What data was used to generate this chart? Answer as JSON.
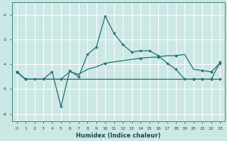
{
  "xlabel": "Humidex (Indice chaleur)",
  "xlim": [
    -0.5,
    23.5
  ],
  "ylim": [
    -6.3,
    -1.5
  ],
  "bg_color": "#cce8e5",
  "grid_color": "#ffffff",
  "line_color": "#1a7070",
  "yticks": [
    -6,
    -5,
    -4,
    -3,
    -2
  ],
  "xticks": [
    0,
    1,
    2,
    3,
    4,
    5,
    6,
    7,
    8,
    9,
    10,
    11,
    12,
    13,
    14,
    15,
    16,
    17,
    18,
    19,
    20,
    21,
    22,
    23
  ],
  "line1_x": [
    0,
    1,
    2,
    3,
    4,
    5,
    6,
    7,
    8,
    9,
    10,
    11,
    12,
    13,
    14,
    15,
    16,
    17,
    18,
    19,
    20,
    21,
    22,
    23
  ],
  "line1_y": [
    -4.3,
    -4.6,
    -4.6,
    -4.6,
    -4.6,
    -4.6,
    -4.6,
    -4.6,
    -4.6,
    -4.6,
    -4.6,
    -4.6,
    -4.6,
    -4.6,
    -4.6,
    -4.6,
    -4.6,
    -4.6,
    -4.6,
    -4.6,
    -4.6,
    -4.6,
    -4.6,
    -4.6
  ],
  "line2_x": [
    0,
    1,
    2,
    3,
    4,
    5,
    6,
    7,
    8,
    9,
    10,
    11,
    12,
    13,
    14,
    15,
    16,
    17,
    18,
    19,
    20,
    21,
    22,
    23
  ],
  "line2_y": [
    -4.3,
    -4.6,
    -4.6,
    -4.6,
    -4.6,
    -4.6,
    -4.3,
    -4.4,
    -4.2,
    -4.1,
    -3.95,
    -3.9,
    -3.85,
    -3.8,
    -3.75,
    -3.72,
    -3.7,
    -3.65,
    -3.65,
    -3.6,
    -4.2,
    -4.25,
    -4.3,
    -3.95
  ],
  "line3_x": [
    0,
    1,
    2,
    3,
    4,
    5,
    6,
    7,
    8,
    9,
    10,
    11,
    12,
    13,
    14,
    15,
    16,
    17,
    18,
    19,
    20,
    21,
    22,
    23
  ],
  "line3_y": [
    -4.3,
    -4.6,
    -4.6,
    -4.6,
    -4.3,
    -5.7,
    -4.25,
    -4.5,
    -3.6,
    -3.3,
    -2.05,
    -2.75,
    -3.2,
    -3.5,
    -3.45,
    -3.45,
    -3.65,
    -3.95,
    -4.2,
    -4.6,
    -4.6,
    -4.6,
    -4.6,
    -3.9
  ],
  "marker3_x": [
    0,
    1,
    2,
    3,
    4,
    5,
    6,
    7,
    8,
    9,
    10,
    11,
    12,
    13,
    14,
    15,
    16,
    17,
    18,
    19,
    20,
    21,
    22,
    23
  ],
  "marker2_x": [
    0,
    1,
    20,
    21,
    22,
    23
  ]
}
